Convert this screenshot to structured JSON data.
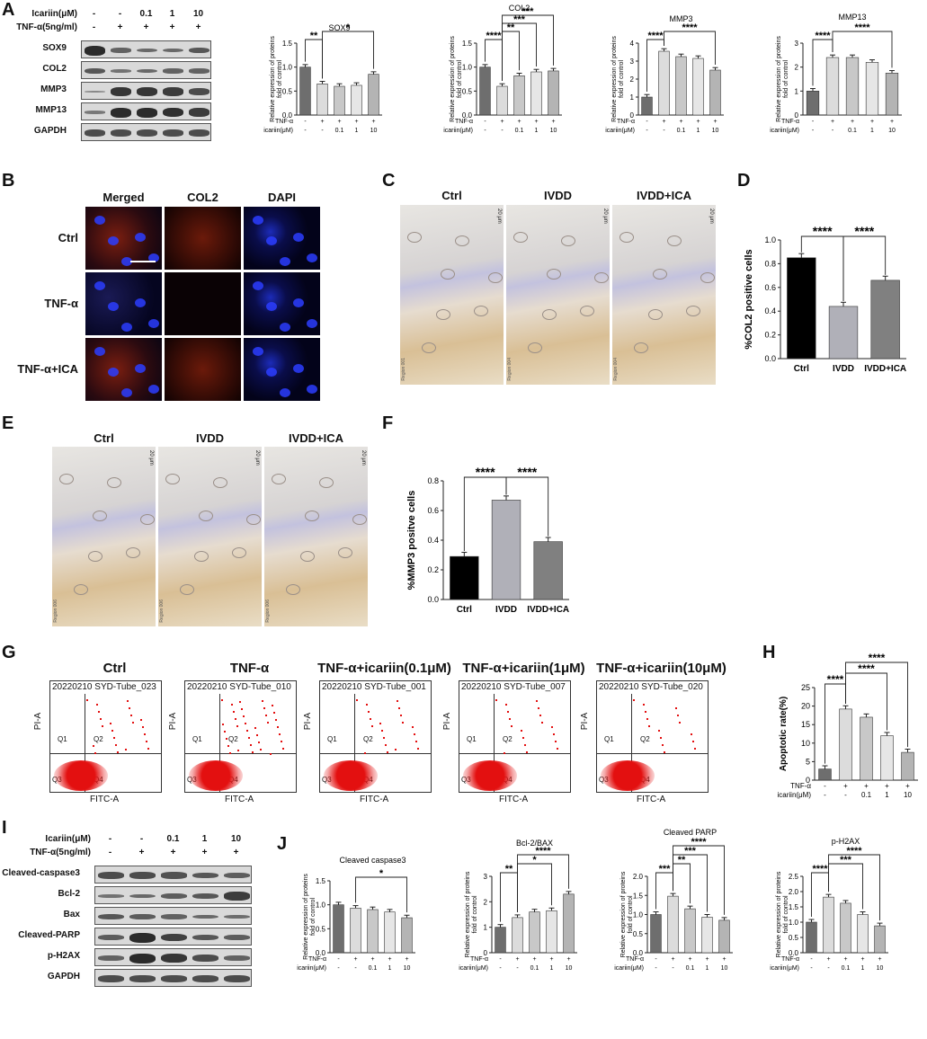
{
  "panels": {
    "A": "A",
    "B": "B",
    "C": "C",
    "D": "D",
    "E": "E",
    "F": "F",
    "G": "G",
    "H": "H",
    "I": "I",
    "J": "J"
  },
  "westernA": {
    "conc_label": "Icariin(μM)",
    "tnf_label": "TNF-α(5ng/ml)",
    "conc": [
      "-",
      "-",
      "0.1",
      "1",
      "10"
    ],
    "tnf": [
      "-",
      "+",
      "+",
      "+",
      "+"
    ],
    "rows": [
      "SOX9",
      "COL2",
      "MMP3",
      "MMP13",
      "GAPDH"
    ]
  },
  "westernI": {
    "conc_label": "Icariin(μM)",
    "tnf_label": "TNF-α(5ng/ml)",
    "conc": [
      "-",
      "-",
      "0.1",
      "1",
      "10"
    ],
    "tnf": [
      "-",
      "+",
      "+",
      "+",
      "+"
    ],
    "rows": [
      "Cleaved-caspase3",
      "Bcl-2",
      "Bax",
      "Cleaved-PARP",
      "p-H2AX",
      "GAPDH"
    ]
  },
  "axis_rows": {
    "tnf": "TNF-α",
    "icariin": "icariin(μM)",
    "tnf_vals": [
      "-",
      "+",
      "+",
      "+",
      "+"
    ],
    "ica_vals": [
      "-",
      "-",
      "0.1",
      "1",
      "10"
    ]
  },
  "ylabel_protein": "Relative expression of proteins",
  "ylabel_fold": "fold of control",
  "ifB": {
    "cols": [
      "Merged",
      "COL2",
      "DAPI"
    ],
    "rows": [
      "Ctrl",
      "TNF-α",
      "TNF-α+ICA"
    ]
  },
  "ihcC": {
    "cols": [
      "Ctrl",
      "IVDD",
      "IVDD+ICA"
    ],
    "scale": "20 μm",
    "region": [
      "Region 001",
      "Region 004",
      "Region 004"
    ]
  },
  "ihcE": {
    "cols": [
      "Ctrl",
      "IVDD",
      "IVDD+ICA"
    ],
    "scale": "20 μm",
    "region": [
      "Region 006",
      "Region 006",
      "Region 006"
    ]
  },
  "flowG": {
    "titles": [
      "Ctrl",
      "TNF-α",
      "TNF-α+icariin(0.1μM)",
      "TNF-α+icariin(1μM)",
      "TNF-α+icariin(10μM)"
    ],
    "tubes": [
      "20220210 SYD-Tube_023",
      "20220210 SYD-Tube_010",
      "20220210 SYD-Tube_001",
      "20220210 SYD-Tube_007",
      "20220210 SYD-Tube_020"
    ],
    "xlabel": "FITC-A",
    "ylabel": "PI-A",
    "quadrants": [
      "Q1",
      "Q2",
      "Q3",
      "Q4"
    ]
  },
  "chart_data": [
    {
      "id": "A-SOX9",
      "type": "bar",
      "title": "SOX9",
      "categories": [
        "1",
        "2",
        "3",
        "4",
        "5"
      ],
      "values": [
        1.0,
        0.65,
        0.6,
        0.62,
        0.85
      ],
      "ylim": [
        0,
        1.5
      ],
      "ticks": [
        "0.0",
        "0.5",
        "1.0",
        "1.5"
      ],
      "sig": [
        {
          "from": 0,
          "to": 1,
          "label": "**"
        },
        {
          "from": 1,
          "to": 4,
          "label": "*"
        }
      ]
    },
    {
      "id": "A-COL2",
      "type": "bar",
      "title": "COL2",
      "categories": [
        "1",
        "2",
        "3",
        "4",
        "5"
      ],
      "values": [
        1.0,
        0.6,
        0.82,
        0.9,
        0.92
      ],
      "ylim": [
        0,
        1.5
      ],
      "ticks": [
        "0.0",
        "0.5",
        "1.0",
        "1.5"
      ],
      "sig": [
        {
          "from": 0,
          "to": 1,
          "label": "****"
        },
        {
          "from": 1,
          "to": 2,
          "label": "**"
        },
        {
          "from": 1,
          "to": 3,
          "label": "***"
        },
        {
          "from": 1,
          "to": 4,
          "label": "***"
        }
      ]
    },
    {
      "id": "A-MMP3",
      "type": "bar",
      "title": "MMP3",
      "categories": [
        "1",
        "2",
        "3",
        "4",
        "5"
      ],
      "values": [
        1.0,
        3.55,
        3.25,
        3.15,
        2.5
      ],
      "ylim": [
        0,
        4
      ],
      "ticks": [
        "0",
        "1",
        "2",
        "3",
        "4"
      ],
      "sig": [
        {
          "from": 0,
          "to": 1,
          "label": "****"
        },
        {
          "from": 1,
          "to": 4,
          "label": "****"
        }
      ]
    },
    {
      "id": "A-MMP13",
      "type": "bar",
      "title": "MMP13",
      "categories": [
        "1",
        "2",
        "3",
        "4",
        "5"
      ],
      "values": [
        1.0,
        2.4,
        2.4,
        2.2,
        1.75
      ],
      "ylim": [
        0,
        3
      ],
      "ticks": [
        "0",
        "1",
        "2",
        "3"
      ],
      "sig": [
        {
          "from": 0,
          "to": 1,
          "label": "****"
        },
        {
          "from": 1,
          "to": 4,
          "label": "****"
        }
      ]
    },
    {
      "id": "D",
      "type": "bar",
      "ylabel": "%COL2 positive cells",
      "categories": [
        "Ctrl",
        "IVDD",
        "IVDD+ICA"
      ],
      "values": [
        0.85,
        0.44,
        0.66
      ],
      "ylim": [
        0,
        1.0
      ],
      "ticks": [
        "0.0",
        "0.2",
        "0.4",
        "0.6",
        "0.8",
        "1.0"
      ],
      "sig": [
        {
          "from": 0,
          "to": 1,
          "label": "****"
        },
        {
          "from": 1,
          "to": 2,
          "label": "****"
        }
      ]
    },
    {
      "id": "F",
      "type": "bar",
      "ylabel": "%MMP3 positve cells",
      "categories": [
        "Ctrl",
        "IVDD",
        "IVDD+ICA"
      ],
      "values": [
        0.29,
        0.67,
        0.39
      ],
      "ylim": [
        0,
        0.8
      ],
      "ticks": [
        "0.0",
        "0.2",
        "0.4",
        "0.6",
        "0.8"
      ],
      "sig": [
        {
          "from": 0,
          "to": 1,
          "label": "****"
        },
        {
          "from": 1,
          "to": 2,
          "label": "****"
        }
      ]
    },
    {
      "id": "H",
      "type": "bar",
      "ylabel": "Apoptotic rate(%)",
      "categories": [
        "1",
        "2",
        "3",
        "4",
        "5"
      ],
      "values": [
        3,
        19.2,
        17,
        12,
        7.5
      ],
      "ylim": [
        0,
        25
      ],
      "ticks": [
        "0",
        "5",
        "10",
        "15",
        "20",
        "25"
      ],
      "sig": [
        {
          "from": 0,
          "to": 1,
          "label": "****"
        },
        {
          "from": 1,
          "to": 3,
          "label": "****"
        },
        {
          "from": 1,
          "to": 4,
          "label": "****"
        }
      ]
    },
    {
      "id": "J-casp",
      "type": "bar",
      "title": "Cleaved caspase3",
      "categories": [
        "1",
        "2",
        "3",
        "4",
        "5"
      ],
      "values": [
        1.0,
        0.93,
        0.9,
        0.85,
        0.73
      ],
      "ylim": [
        0,
        1.5
      ],
      "ticks": [
        "0.0",
        "0.5",
        "1.0",
        "1.5"
      ],
      "sig": [
        {
          "from": 1,
          "to": 4,
          "label": "*"
        }
      ]
    },
    {
      "id": "J-bcl",
      "type": "bar",
      "title": "Bcl-2/BAX",
      "categories": [
        "1",
        "2",
        "3",
        "4",
        "5"
      ],
      "values": [
        1.0,
        1.38,
        1.6,
        1.65,
        2.3
      ],
      "ylim": [
        0,
        3
      ],
      "ticks": [
        "0",
        "1",
        "2",
        "3"
      ],
      "sig": [
        {
          "from": 0,
          "to": 1,
          "label": "**"
        },
        {
          "from": 1,
          "to": 3,
          "label": "*"
        },
        {
          "from": 1,
          "to": 4,
          "label": "****"
        }
      ]
    },
    {
      "id": "J-parp",
      "type": "bar",
      "title": "Cleaved PARP",
      "categories": [
        "1",
        "2",
        "3",
        "4",
        "5"
      ],
      "values": [
        1.0,
        1.48,
        1.15,
        0.93,
        0.85
      ],
      "ylim": [
        0,
        2.0
      ],
      "ticks": [
        "0.0",
        "0.5",
        "1.0",
        "1.5",
        "2.0"
      ],
      "sig": [
        {
          "from": 0,
          "to": 1,
          "label": "***"
        },
        {
          "from": 1,
          "to": 2,
          "label": "**"
        },
        {
          "from": 1,
          "to": 3,
          "label": "***"
        },
        {
          "from": 1,
          "to": 4,
          "label": "****"
        }
      ]
    },
    {
      "id": "J-h2ax",
      "type": "bar",
      "title": "p-H2AX",
      "categories": [
        "1",
        "2",
        "3",
        "4",
        "5"
      ],
      "values": [
        1.0,
        1.82,
        1.62,
        1.25,
        0.88
      ],
      "ylim": [
        0,
        2.5
      ],
      "ticks": [
        "0.0",
        "0.5",
        "1.0",
        "1.5",
        "2.0",
        "2.5"
      ],
      "sig": [
        {
          "from": 0,
          "to": 1,
          "label": "****"
        },
        {
          "from": 1,
          "to": 3,
          "label": "***"
        },
        {
          "from": 1,
          "to": 4,
          "label": "****"
        }
      ]
    }
  ]
}
